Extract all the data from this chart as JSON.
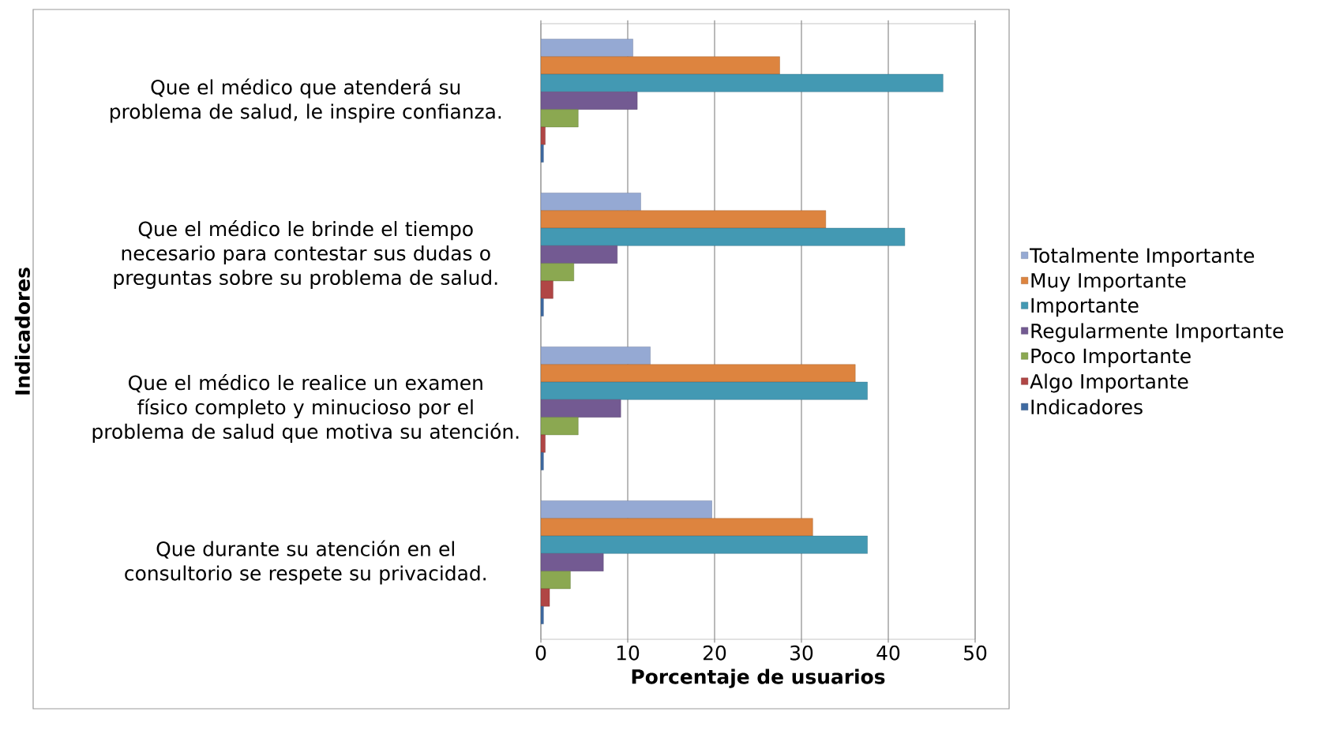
{
  "chart_data": {
    "type": "bar",
    "orientation": "horizontal",
    "xlabel": "Porcentaje de usuarios",
    "ylabel": "Indicadores",
    "categories": [
      "Que el médico que atenderá su problema de salud, le inspire confianza.",
      "Que el médico le brinde el tiempo necesario para contestar sus dudas o preguntas sobre su problema de salud.",
      "Que el médico le realice un examen físico completo y minucioso por el problema de salud que motiva su atención.",
      "Que durante su atención en el consultorio se respete su privacidad."
    ],
    "series": [
      {
        "name": "Totalmente Importante",
        "color": "#95a9d3",
        "values": [
          10.6,
          11.5,
          12.6,
          19.7
        ]
      },
      {
        "name": "Muy Importante",
        "color": "#dd843f",
        "values": [
          27.5,
          32.8,
          36.2,
          31.3
        ]
      },
      {
        "name": "Importante",
        "color": "#4399b3",
        "values": [
          46.3,
          41.9,
          37.6,
          37.6
        ]
      },
      {
        "name": "Regularmente Importante",
        "color": "#735a92",
        "values": [
          11.1,
          8.8,
          9.2,
          7.2
        ]
      },
      {
        "name": "Poco Importante",
        "color": "#8ba851",
        "values": [
          4.3,
          3.8,
          4.3,
          3.4
        ]
      },
      {
        "name": "Algo Importante",
        "color": "#b04645",
        "values": [
          0.5,
          1.4,
          0.5,
          1.0
        ]
      },
      {
        "name": "Indicadores",
        "color": "#3e6aa1",
        "values": [
          0.3,
          0.3,
          0.3,
          0.3
        ]
      }
    ],
    "xlim": [
      0,
      50
    ],
    "xticks": [
      0,
      10,
      20,
      30,
      40,
      50
    ],
    "grid": "x",
    "legend": "right"
  }
}
